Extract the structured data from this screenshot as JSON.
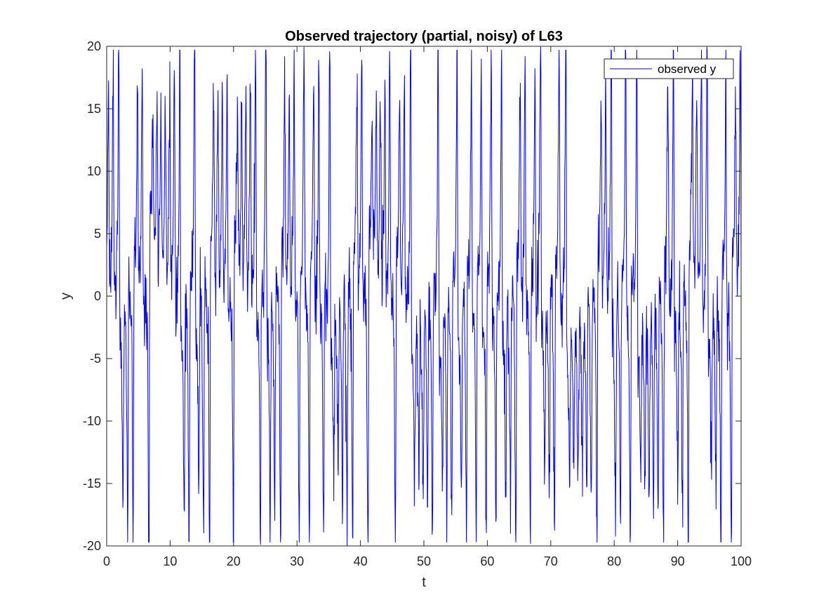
{
  "chart_data": {
    "type": "line",
    "title": "Observed trajectory (partial, noisy) of L63",
    "xlabel": "t",
    "ylabel": "y",
    "xlim": [
      0,
      100
    ],
    "ylim": [
      -20,
      20
    ],
    "xticks": [
      0,
      10,
      20,
      30,
      40,
      50,
      60,
      70,
      80,
      90,
      100
    ],
    "yticks": [
      -20,
      -15,
      -10,
      -5,
      0,
      5,
      10,
      15,
      20
    ],
    "xtick_labels": [
      "0",
      "10",
      "20",
      "30",
      "40",
      "50",
      "60",
      "70",
      "80",
      "90",
      "100"
    ],
    "ytick_labels": [
      "-20",
      "-15",
      "-10",
      "-5",
      "0",
      "5",
      "10",
      "15",
      "20"
    ],
    "legend": {
      "location": "top-right",
      "entries": [
        "observed y"
      ]
    },
    "grid": false,
    "series": [
      {
        "name": "observed y",
        "color": "#0000ff",
        "sampling": "noisy observations approx. every 0.05 time units, t from 0 to 100 (2001 points); values reproduced as a Lorenz-63 y trajectory with added noise",
        "landmarks": [
          {
            "t": 1.9,
            "y": 18.5
          },
          {
            "t": 6.2,
            "y": 17.2
          },
          {
            "t": 8.5,
            "y": 17.4
          },
          {
            "t": 13.1,
            "y": -19.4
          },
          {
            "t": 22.5,
            "y": -19.2
          },
          {
            "t": 30.4,
            "y": 17.4
          },
          {
            "t": 32.9,
            "y": -19.8
          },
          {
            "t": 38.5,
            "y": 17.0
          },
          {
            "t": 41.8,
            "y": -18.4
          },
          {
            "t": 46.5,
            "y": -18.2
          },
          {
            "t": 62.8,
            "y": 19.1
          },
          {
            "t": 74.5,
            "y": 19.0
          },
          {
            "t": 99.5,
            "y": 18.3
          }
        ]
      }
    ]
  }
}
